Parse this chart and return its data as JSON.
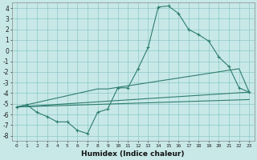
{
  "xlabel": "Humidex (Indice chaleur)",
  "background_color": "#c8e8e8",
  "line_color": "#2e7d6e",
  "xlim": [
    -0.5,
    23.5
  ],
  "ylim": [
    -8.5,
    4.5
  ],
  "xticks": [
    0,
    1,
    2,
    3,
    4,
    5,
    6,
    7,
    8,
    9,
    10,
    11,
    12,
    13,
    14,
    15,
    16,
    17,
    18,
    19,
    20,
    21,
    22,
    23
  ],
  "yticks": [
    -8,
    -7,
    -6,
    -5,
    -4,
    -3,
    -2,
    -1,
    0,
    1,
    2,
    3,
    4
  ],
  "series1_x": [
    0,
    1,
    2,
    3,
    4,
    5,
    6,
    7,
    8,
    9,
    10,
    11,
    12,
    13,
    14,
    15,
    16,
    17,
    18,
    19,
    20,
    21,
    22,
    23
  ],
  "series1_y": [
    -5.3,
    -5.1,
    -5.8,
    -6.2,
    -6.7,
    -6.7,
    -7.5,
    -7.8,
    -5.8,
    -5.5,
    -3.5,
    -3.5,
    -1.7,
    0.3,
    4.1,
    4.2,
    3.5,
    2.0,
    1.5,
    0.9,
    -0.6,
    -1.5,
    -3.5,
    -3.9
  ],
  "series2_x": [
    0,
    23
  ],
  "series2_y": [
    -5.3,
    -3.9
  ],
  "series3_x": [
    0,
    8,
    9,
    22,
    23
  ],
  "series3_y": [
    -5.3,
    -3.6,
    -3.6,
    -1.7,
    -3.9
  ],
  "series4_x": [
    0,
    23
  ],
  "series4_y": [
    -5.3,
    -4.6
  ]
}
